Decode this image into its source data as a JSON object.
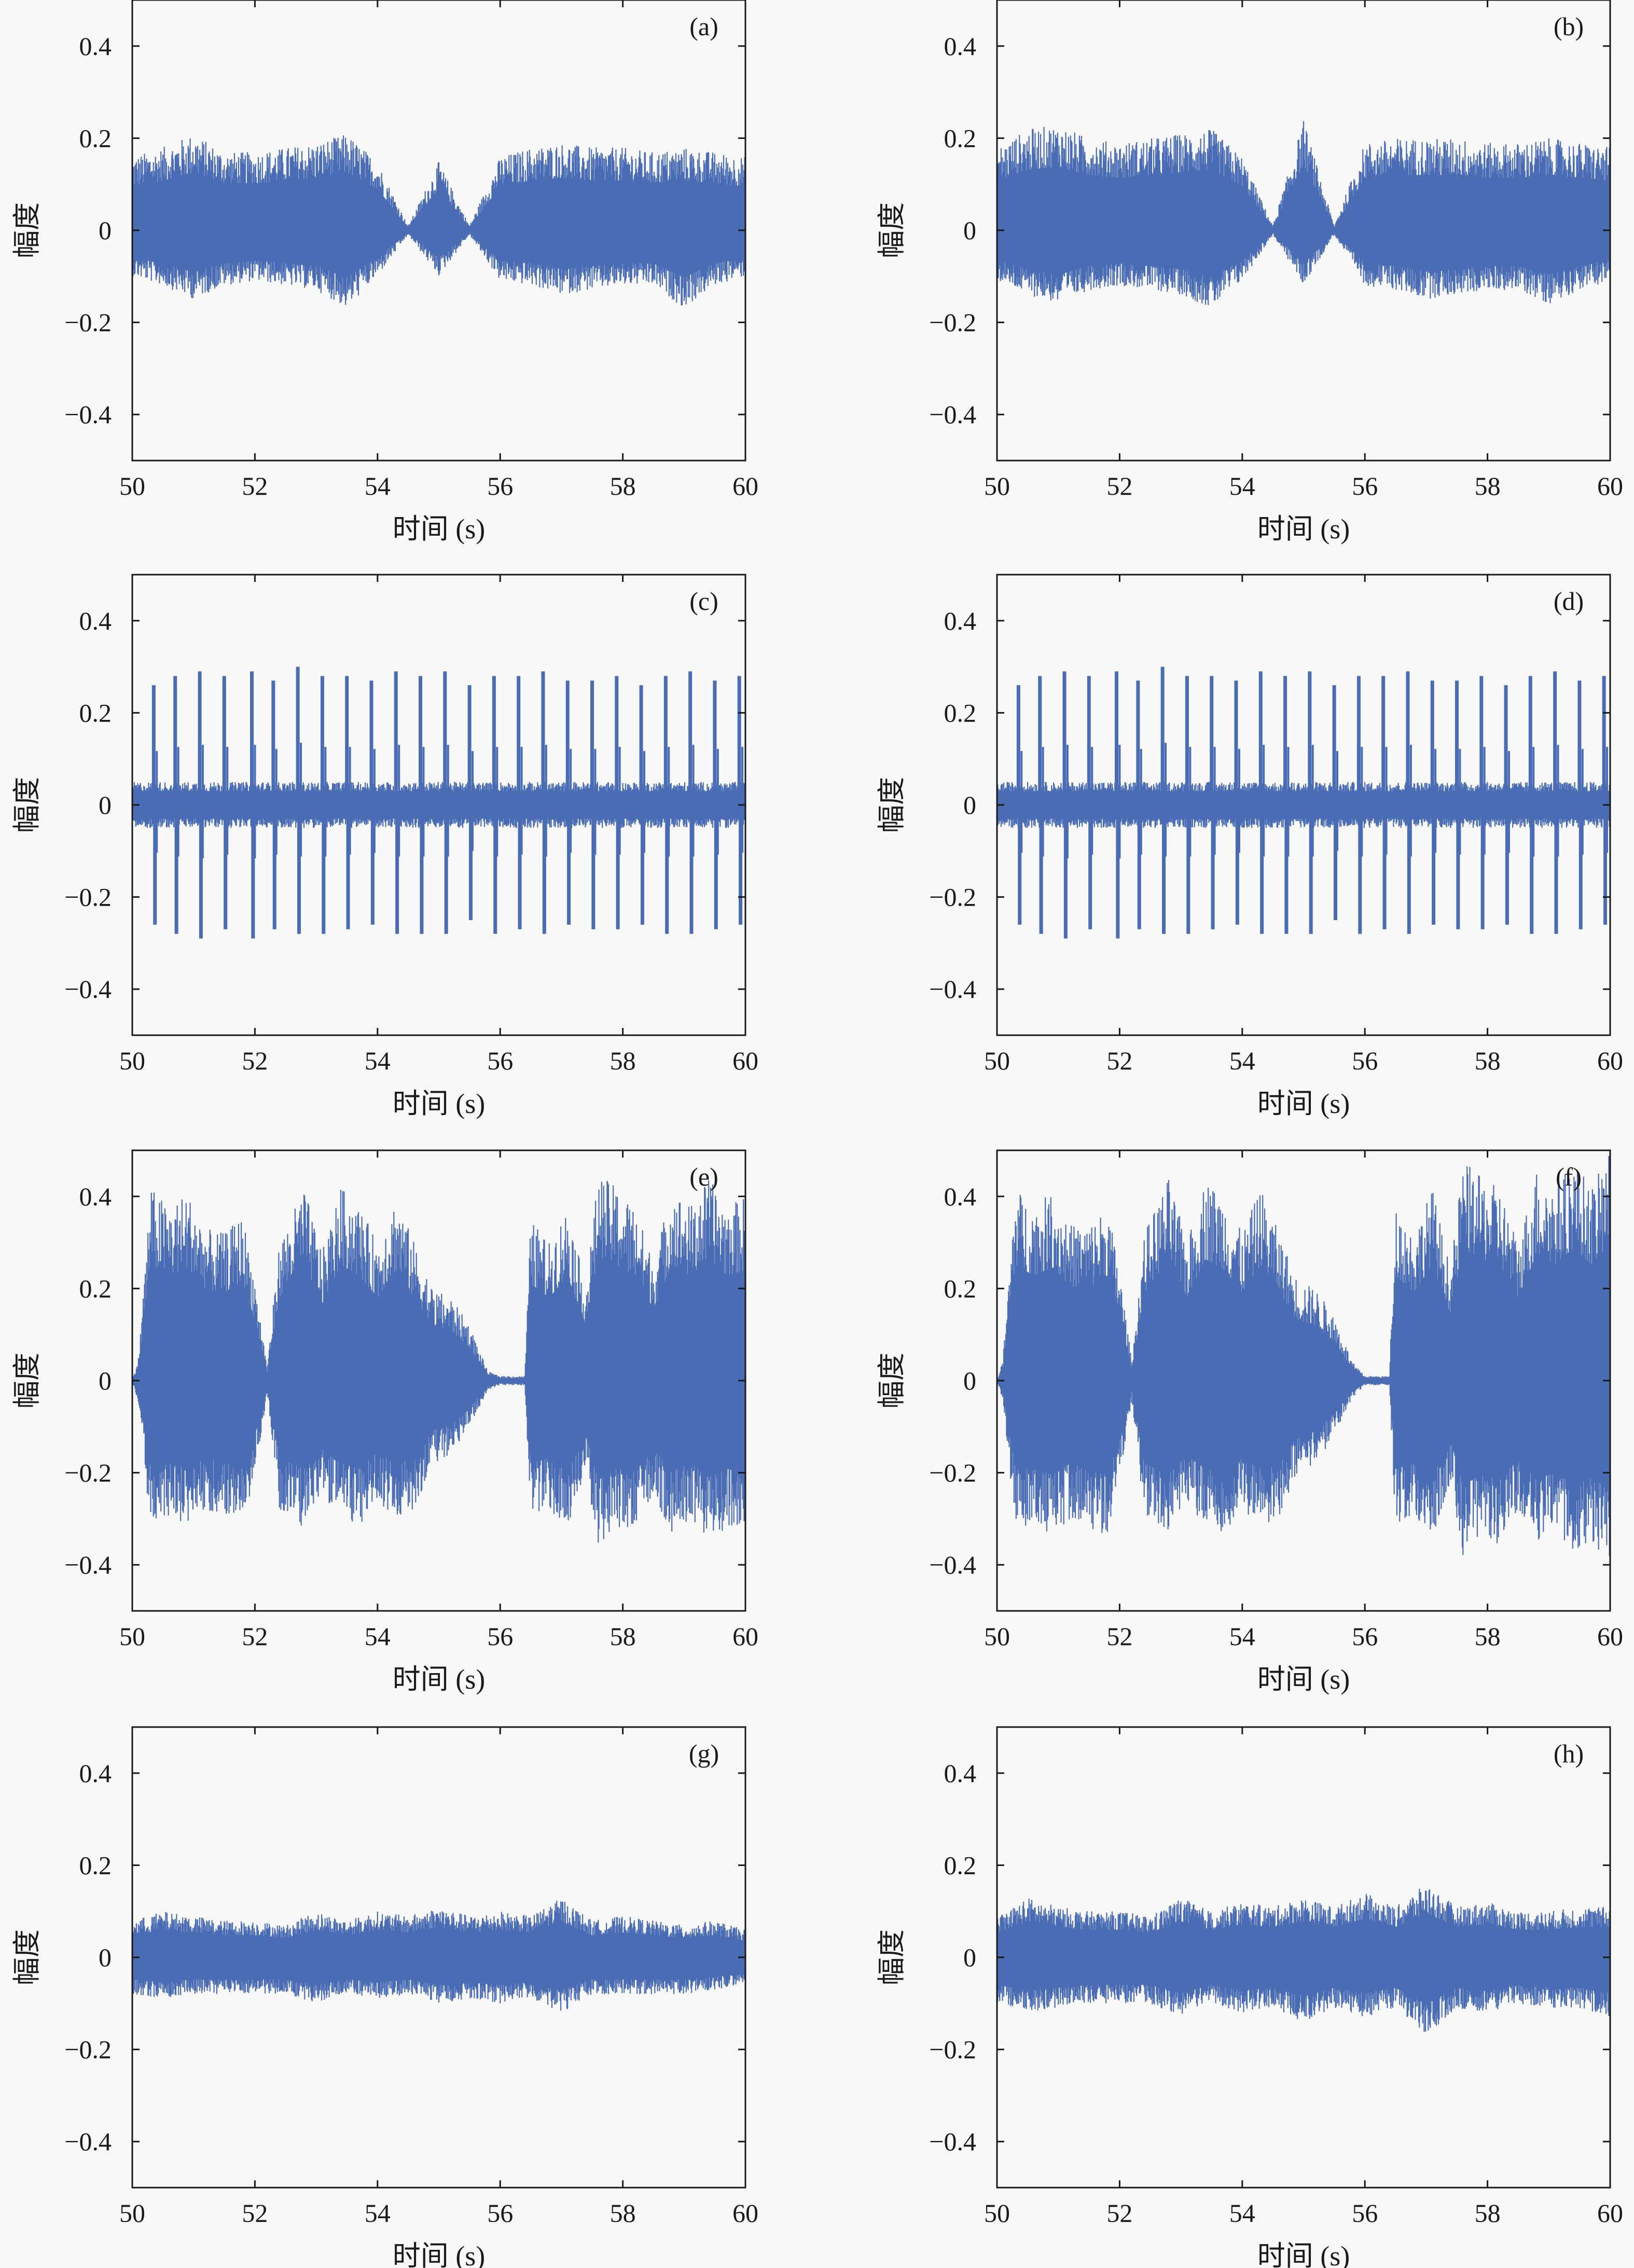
{
  "figure": {
    "layout": "4 rows x 2 columns",
    "signal_color": "#4a6cb5",
    "axis_color": "#1a1a1a",
    "background": "#f8f8f8"
  },
  "chart_data": [
    {
      "type": "line",
      "panel_label": "(a)",
      "xlabel": "时间 (s)",
      "ylabel": "幅度",
      "xlim": [
        50,
        60
      ],
      "ylim": [
        -0.5,
        0.5
      ],
      "xticks": [
        50,
        52,
        54,
        56,
        58,
        60
      ],
      "yticks": [
        -0.4,
        -0.2,
        0,
        0.2,
        0.4
      ],
      "xtick_labels": [
        "50",
        "52",
        "54",
        "56",
        "58",
        "60"
      ],
      "ytick_labels": [
        "−0.4",
        "−0.2",
        "0",
        "0.2",
        "0.4"
      ],
      "grid": false,
      "description_pattern": "decaying notes",
      "envelope": {
        "x": [
          50,
          50.5,
          51,
          51.5,
          52,
          52.5,
          53,
          53.5,
          54,
          54.5,
          55,
          55.5,
          56,
          56.5,
          57,
          57.5,
          58,
          58.5,
          59,
          59.5,
          60
        ],
        "upper": [
          0.16,
          0.18,
          0.21,
          0.17,
          0.17,
          0.18,
          0.19,
          0.21,
          0.15,
          0.01,
          0.15,
          0.01,
          0.16,
          0.18,
          0.19,
          0.18,
          0.18,
          0.17,
          0.18,
          0.17,
          0.16
        ],
        "lower": [
          -0.1,
          -0.12,
          -0.15,
          -0.12,
          -0.11,
          -0.12,
          -0.13,
          -0.17,
          -0.1,
          -0.01,
          -0.1,
          -0.01,
          -0.11,
          -0.12,
          -0.14,
          -0.13,
          -0.12,
          -0.12,
          -0.17,
          -0.12,
          -0.1
        ]
      }
    },
    {
      "type": "line",
      "panel_label": "(b)",
      "xlabel": "时间 (s)",
      "ylabel": "幅度",
      "xlim": [
        50,
        60
      ],
      "ylim": [
        -0.5,
        0.5
      ],
      "xticks": [
        50,
        52,
        54,
        56,
        58,
        60
      ],
      "yticks": [
        -0.4,
        -0.2,
        0,
        0.2,
        0.4
      ],
      "xtick_labels": [
        "50",
        "52",
        "54",
        "56",
        "58",
        "60"
      ],
      "ytick_labels": [
        "−0.4",
        "−0.2",
        "0",
        "0.2",
        "0.4"
      ],
      "grid": false,
      "envelope": {
        "x": [
          50,
          50.5,
          51,
          51.5,
          52,
          52.5,
          53,
          53.5,
          54,
          54.5,
          55,
          55.5,
          56,
          56.5,
          57,
          57.5,
          58,
          58.5,
          59,
          59.5,
          60
        ],
        "upper": [
          0.18,
          0.22,
          0.23,
          0.2,
          0.19,
          0.2,
          0.21,
          0.22,
          0.16,
          0.01,
          0.24,
          0.01,
          0.19,
          0.2,
          0.2,
          0.2,
          0.19,
          0.19,
          0.2,
          0.19,
          0.18
        ],
        "lower": [
          -0.11,
          -0.14,
          -0.16,
          -0.13,
          -0.12,
          -0.13,
          -0.14,
          -0.17,
          -0.11,
          -0.01,
          -0.12,
          -0.01,
          -0.12,
          -0.13,
          -0.15,
          -0.14,
          -0.13,
          -0.13,
          -0.16,
          -0.13,
          -0.11
        ]
      }
    },
    {
      "type": "line",
      "panel_label": "(c)",
      "xlabel": "时间 (s)",
      "ylabel": "幅度",
      "xlim": [
        50,
        60
      ],
      "ylim": [
        -0.5,
        0.5
      ],
      "xticks": [
        50,
        52,
        54,
        56,
        58,
        60
      ],
      "yticks": [
        -0.4,
        -0.2,
        0,
        0.2,
        0.4
      ],
      "xtick_labels": [
        "50",
        "52",
        "54",
        "56",
        "58",
        "60"
      ],
      "ytick_labels": [
        "−0.4",
        "−0.2",
        "0",
        "0.2",
        "0.4"
      ],
      "grid": false,
      "base_amplitude": 0.05,
      "spikes": {
        "x": [
          50.35,
          50.7,
          51.1,
          51.5,
          51.95,
          52.3,
          52.7,
          53.1,
          53.5,
          53.9,
          54.3,
          54.7,
          55.1,
          55.5,
          55.9,
          56.3,
          56.7,
          57.1,
          57.5,
          57.9,
          58.3,
          58.7,
          59.1,
          59.5,
          59.9
        ],
        "peak": [
          0.26,
          0.28,
          0.29,
          0.28,
          0.29,
          0.27,
          0.3,
          0.28,
          0.28,
          0.27,
          0.29,
          0.28,
          0.29,
          0.26,
          0.28,
          0.28,
          0.29,
          0.27,
          0.27,
          0.28,
          0.26,
          0.28,
          0.29,
          0.27,
          0.28
        ],
        "trough": [
          -0.26,
          -0.28,
          -0.29,
          -0.27,
          -0.29,
          -0.27,
          -0.28,
          -0.28,
          -0.27,
          -0.26,
          -0.28,
          -0.28,
          -0.28,
          -0.25,
          -0.28,
          -0.27,
          -0.28,
          -0.26,
          -0.27,
          -0.27,
          -0.26,
          -0.28,
          -0.28,
          -0.27,
          -0.26
        ]
      }
    },
    {
      "type": "line",
      "panel_label": "(d)",
      "xlabel": "时间 (s)",
      "ylabel": "幅度",
      "xlim": [
        50,
        60
      ],
      "ylim": [
        -0.5,
        0.5
      ],
      "xticks": [
        50,
        52,
        54,
        56,
        58,
        60
      ],
      "yticks": [
        -0.4,
        -0.2,
        0,
        0.2,
        0.4
      ],
      "xtick_labels": [
        "50",
        "52",
        "54",
        "56",
        "58",
        "60"
      ],
      "ytick_labels": [
        "−0.4",
        "−0.2",
        "0",
        "0.2",
        "0.4"
      ],
      "grid": false,
      "base_amplitude": 0.05,
      "spikes": {
        "x": [
          50.35,
          50.7,
          51.1,
          51.5,
          51.95,
          52.3,
          52.7,
          53.1,
          53.5,
          53.9,
          54.3,
          54.7,
          55.1,
          55.5,
          55.9,
          56.3,
          56.7,
          57.1,
          57.5,
          57.9,
          58.3,
          58.7,
          59.1,
          59.5,
          59.9
        ],
        "peak": [
          0.26,
          0.28,
          0.29,
          0.28,
          0.29,
          0.27,
          0.3,
          0.28,
          0.28,
          0.27,
          0.29,
          0.28,
          0.29,
          0.26,
          0.28,
          0.28,
          0.29,
          0.27,
          0.27,
          0.28,
          0.26,
          0.28,
          0.29,
          0.27,
          0.28
        ],
        "trough": [
          -0.26,
          -0.28,
          -0.29,
          -0.27,
          -0.29,
          -0.27,
          -0.28,
          -0.28,
          -0.27,
          -0.26,
          -0.28,
          -0.28,
          -0.28,
          -0.25,
          -0.28,
          -0.27,
          -0.28,
          -0.26,
          -0.27,
          -0.27,
          -0.26,
          -0.28,
          -0.28,
          -0.27,
          -0.26
        ]
      }
    },
    {
      "type": "line",
      "panel_label": "(e)",
      "xlabel": "时间 (s)",
      "ylabel": "幅度",
      "xlim": [
        50,
        60
      ],
      "ylim": [
        -0.5,
        0.5
      ],
      "xticks": [
        50,
        52,
        54,
        56,
        58,
        60
      ],
      "yticks": [
        -0.4,
        -0.2,
        0,
        0.2,
        0.4
      ],
      "xtick_labels": [
        "50",
        "52",
        "54",
        "56",
        "58",
        "60"
      ],
      "ytick_labels": [
        "−0.4",
        "−0.2",
        "0",
        "0.2",
        "0.4"
      ],
      "grid": false,
      "envelope": {
        "x": [
          50,
          50.1,
          50.3,
          50.6,
          50.9,
          51.2,
          51.5,
          51.8,
          52.0,
          52.2,
          52.4,
          52.8,
          53.1,
          53.4,
          53.7,
          54.0,
          54.3,
          54.6,
          54.9,
          55.2,
          55.5,
          55.8,
          56.0,
          56.4,
          56.5,
          56.8,
          57.1,
          57.4,
          57.6,
          57.9,
          58.2,
          58.5,
          58.8,
          59.1,
          59.4,
          59.7,
          60
        ],
        "upper": [
          0.0,
          0.05,
          0.42,
          0.38,
          0.41,
          0.33,
          0.32,
          0.36,
          0.22,
          0.03,
          0.3,
          0.42,
          0.28,
          0.42,
          0.38,
          0.3,
          0.4,
          0.3,
          0.2,
          0.18,
          0.12,
          0.02,
          0.01,
          0.01,
          0.35,
          0.3,
          0.38,
          0.2,
          0.45,
          0.42,
          0.38,
          0.26,
          0.42,
          0.38,
          0.44,
          0.38,
          0.4
        ],
        "lower": [
          0.0,
          -0.05,
          -0.32,
          -0.3,
          -0.32,
          -0.28,
          -0.3,
          -0.32,
          -0.2,
          -0.03,
          -0.28,
          -0.32,
          -0.25,
          -0.3,
          -0.32,
          -0.26,
          -0.3,
          -0.28,
          -0.18,
          -0.16,
          -0.1,
          -0.02,
          -0.01,
          -0.01,
          -0.3,
          -0.28,
          -0.33,
          -0.2,
          -0.36,
          -0.32,
          -0.33,
          -0.25,
          -0.33,
          -0.3,
          -0.35,
          -0.32,
          -0.33
        ]
      }
    },
    {
      "type": "line",
      "panel_label": "(f)",
      "xlabel": "时间 (s)",
      "ylabel": "幅度",
      "xlim": [
        50,
        60
      ],
      "ylim": [
        -0.5,
        0.5
      ],
      "xticks": [
        50,
        52,
        54,
        56,
        58,
        60
      ],
      "yticks": [
        -0.4,
        -0.2,
        0,
        0.2,
        0.4
      ],
      "xtick_labels": [
        "50",
        "52",
        "54",
        "56",
        "58",
        "60"
      ],
      "ytick_labels": [
        "−0.4",
        "−0.2",
        "0",
        "0.2",
        "0.4"
      ],
      "grid": false,
      "envelope": {
        "x": [
          50,
          50.1,
          50.3,
          50.6,
          50.9,
          51.2,
          51.5,
          51.8,
          52.0,
          52.2,
          52.4,
          52.8,
          53.1,
          53.4,
          53.7,
          54.0,
          54.3,
          54.6,
          54.9,
          55.2,
          55.5,
          55.8,
          56.0,
          56.4,
          56.5,
          56.8,
          57.1,
          57.4,
          57.6,
          57.9,
          58.2,
          58.5,
          58.8,
          59.1,
          59.4,
          59.7,
          60
        ],
        "upper": [
          0.0,
          0.05,
          0.42,
          0.38,
          0.41,
          0.34,
          0.34,
          0.38,
          0.24,
          0.04,
          0.32,
          0.44,
          0.3,
          0.44,
          0.4,
          0.32,
          0.42,
          0.32,
          0.22,
          0.2,
          0.14,
          0.04,
          0.01,
          0.01,
          0.38,
          0.32,
          0.42,
          0.24,
          0.48,
          0.44,
          0.42,
          0.3,
          0.46,
          0.42,
          0.48,
          0.42,
          0.5
        ],
        "lower": [
          0.0,
          -0.05,
          -0.32,
          -0.32,
          -0.34,
          -0.3,
          -0.32,
          -0.34,
          -0.22,
          -0.04,
          -0.3,
          -0.34,
          -0.27,
          -0.32,
          -0.34,
          -0.28,
          -0.32,
          -0.3,
          -0.2,
          -0.18,
          -0.12,
          -0.04,
          -0.01,
          -0.01,
          -0.32,
          -0.3,
          -0.35,
          -0.22,
          -0.38,
          -0.34,
          -0.36,
          -0.28,
          -0.36,
          -0.33,
          -0.38,
          -0.35,
          -0.4
        ]
      }
    },
    {
      "type": "line",
      "panel_label": "(g)",
      "xlabel": "时间 (s)",
      "ylabel": "幅度",
      "xlim": [
        50,
        60
      ],
      "ylim": [
        -0.5,
        0.5
      ],
      "xticks": [
        50,
        52,
        54,
        56,
        58,
        60
      ],
      "yticks": [
        -0.4,
        -0.2,
        0,
        0.2,
        0.4
      ],
      "xtick_labels": [
        "50",
        "52",
        "54",
        "56",
        "58",
        "60"
      ],
      "ytick_labels": [
        "−0.4",
        "−0.2",
        "0",
        "0.2",
        "0.4"
      ],
      "grid": false,
      "envelope": {
        "x": [
          50,
          50.5,
          51,
          51.5,
          52,
          52.5,
          53,
          53.5,
          54,
          54.5,
          55,
          55.5,
          56,
          56.5,
          57,
          57.5,
          58,
          58.5,
          59,
          59.5,
          60
        ],
        "upper": [
          0.08,
          0.1,
          0.09,
          0.08,
          0.08,
          0.07,
          0.1,
          0.08,
          0.1,
          0.09,
          0.11,
          0.09,
          0.1,
          0.09,
          0.13,
          0.08,
          0.09,
          0.08,
          0.07,
          0.08,
          0.06
        ],
        "lower": [
          -0.08,
          -0.09,
          -0.08,
          -0.08,
          -0.08,
          -0.08,
          -0.1,
          -0.08,
          -0.09,
          -0.08,
          -0.1,
          -0.09,
          -0.1,
          -0.09,
          -0.12,
          -0.08,
          -0.08,
          -0.08,
          -0.08,
          -0.07,
          -0.06
        ]
      }
    },
    {
      "type": "line",
      "panel_label": "(h)",
      "xlabel": "时间 (s)",
      "ylabel": "幅度",
      "xlim": [
        50,
        60
      ],
      "ylim": [
        -0.5,
        0.5
      ],
      "xticks": [
        50,
        52,
        54,
        56,
        58,
        60
      ],
      "yticks": [
        -0.4,
        -0.2,
        0,
        0.2,
        0.4
      ],
      "xtick_labels": [
        "50",
        "52",
        "54",
        "56",
        "58",
        "60"
      ],
      "ytick_labels": [
        "−0.4",
        "−0.2",
        "0",
        "0.2",
        "0.4"
      ],
      "grid": false,
      "envelope": {
        "x": [
          50,
          50.5,
          51,
          51.5,
          52,
          52.5,
          53,
          53.5,
          54,
          54.5,
          55,
          55.5,
          56,
          56.5,
          57,
          57.5,
          58,
          58.5,
          59,
          59.5,
          60
        ],
        "upper": [
          0.09,
          0.13,
          0.11,
          0.1,
          0.1,
          0.09,
          0.13,
          0.1,
          0.12,
          0.11,
          0.13,
          0.11,
          0.14,
          0.11,
          0.16,
          0.11,
          0.12,
          0.1,
          0.1,
          0.11,
          0.11
        ],
        "lower": [
          -0.1,
          -0.12,
          -0.11,
          -0.1,
          -0.1,
          -0.1,
          -0.13,
          -0.1,
          -0.12,
          -0.11,
          -0.14,
          -0.11,
          -0.13,
          -0.11,
          -0.17,
          -0.11,
          -0.12,
          -0.1,
          -0.11,
          -0.11,
          -0.13
        ]
      }
    }
  ]
}
